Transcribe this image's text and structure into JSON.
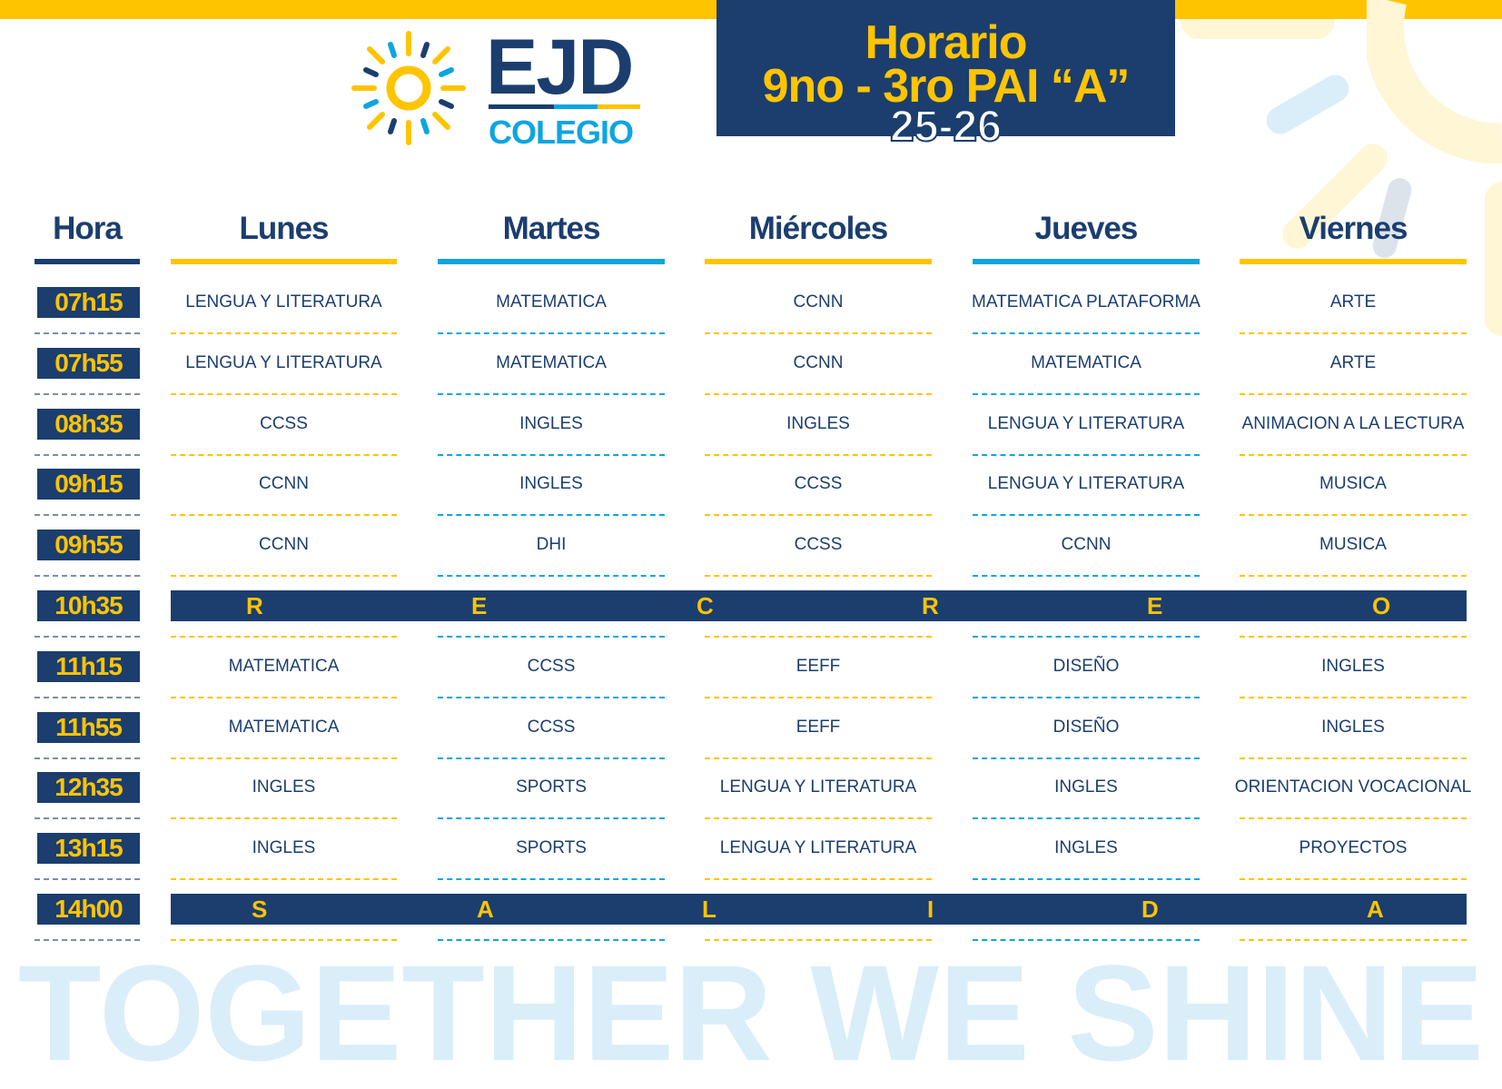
{
  "header": {
    "title_line1": "Horario",
    "title_line2": "9no - 3ro PAI “A”",
    "title_line3": "25-26"
  },
  "logo": {
    "name": "EJD",
    "subtitle": "COLEGIO"
  },
  "columns": [
    "Hora",
    "Lunes",
    "Martes",
    "Miércoles",
    "Jueves",
    "Viernes"
  ],
  "rows": [
    {
      "time": "07h15",
      "cells": [
        "LENGUA Y LITERATURA",
        "MATEMATICA",
        "CCNN",
        "MATEMATICA PLATAFORMA",
        "ARTE"
      ]
    },
    {
      "time": "07h55",
      "cells": [
        "LENGUA Y LITERATURA",
        "MATEMATICA",
        "CCNN",
        "MATEMATICA",
        "ARTE"
      ]
    },
    {
      "time": "08h35",
      "cells": [
        "CCSS",
        "INGLES",
        "INGLES",
        "LENGUA Y LITERATURA",
        "ANIMACION A LA LECTURA"
      ]
    },
    {
      "time": "09h15",
      "cells": [
        "CCNN",
        "INGLES",
        "CCSS",
        "LENGUA Y LITERATURA",
        "MUSICA"
      ]
    },
    {
      "time": "09h55",
      "cells": [
        "CCNN",
        "DHI",
        "CCSS",
        "CCNN",
        "MUSICA"
      ]
    },
    {
      "time": "10h35",
      "band": [
        "R",
        "E",
        "C",
        "R",
        "E",
        "O"
      ]
    },
    {
      "time": "11h15",
      "cells": [
        "MATEMATICA",
        "CCSS",
        "EEFF",
        "DISEÑO",
        "INGLES"
      ]
    },
    {
      "time": "11h55",
      "cells": [
        "MATEMATICA",
        "CCSS",
        "EEFF",
        "DISEÑO",
        "INGLES"
      ]
    },
    {
      "time": "12h35",
      "cells": [
        "INGLES",
        "SPORTS",
        "LENGUA Y LITERATURA",
        "INGLES",
        "ORIENTACION VOCACIONAL"
      ]
    },
    {
      "time": "13h15",
      "cells": [
        "INGLES",
        "SPORTS",
        "LENGUA Y LITERATURA",
        "INGLES",
        "PROYECTOS"
      ]
    },
    {
      "time": "14h00",
      "band": [
        "S",
        "A",
        "L",
        "I",
        "D",
        "A"
      ]
    }
  ],
  "footer": {
    "slogan": "TOGETHER WE SHINE"
  },
  "colors": {
    "navy": "#1b3e6f",
    "yellow": "#ffc400",
    "blue": "#0ea5e0"
  }
}
